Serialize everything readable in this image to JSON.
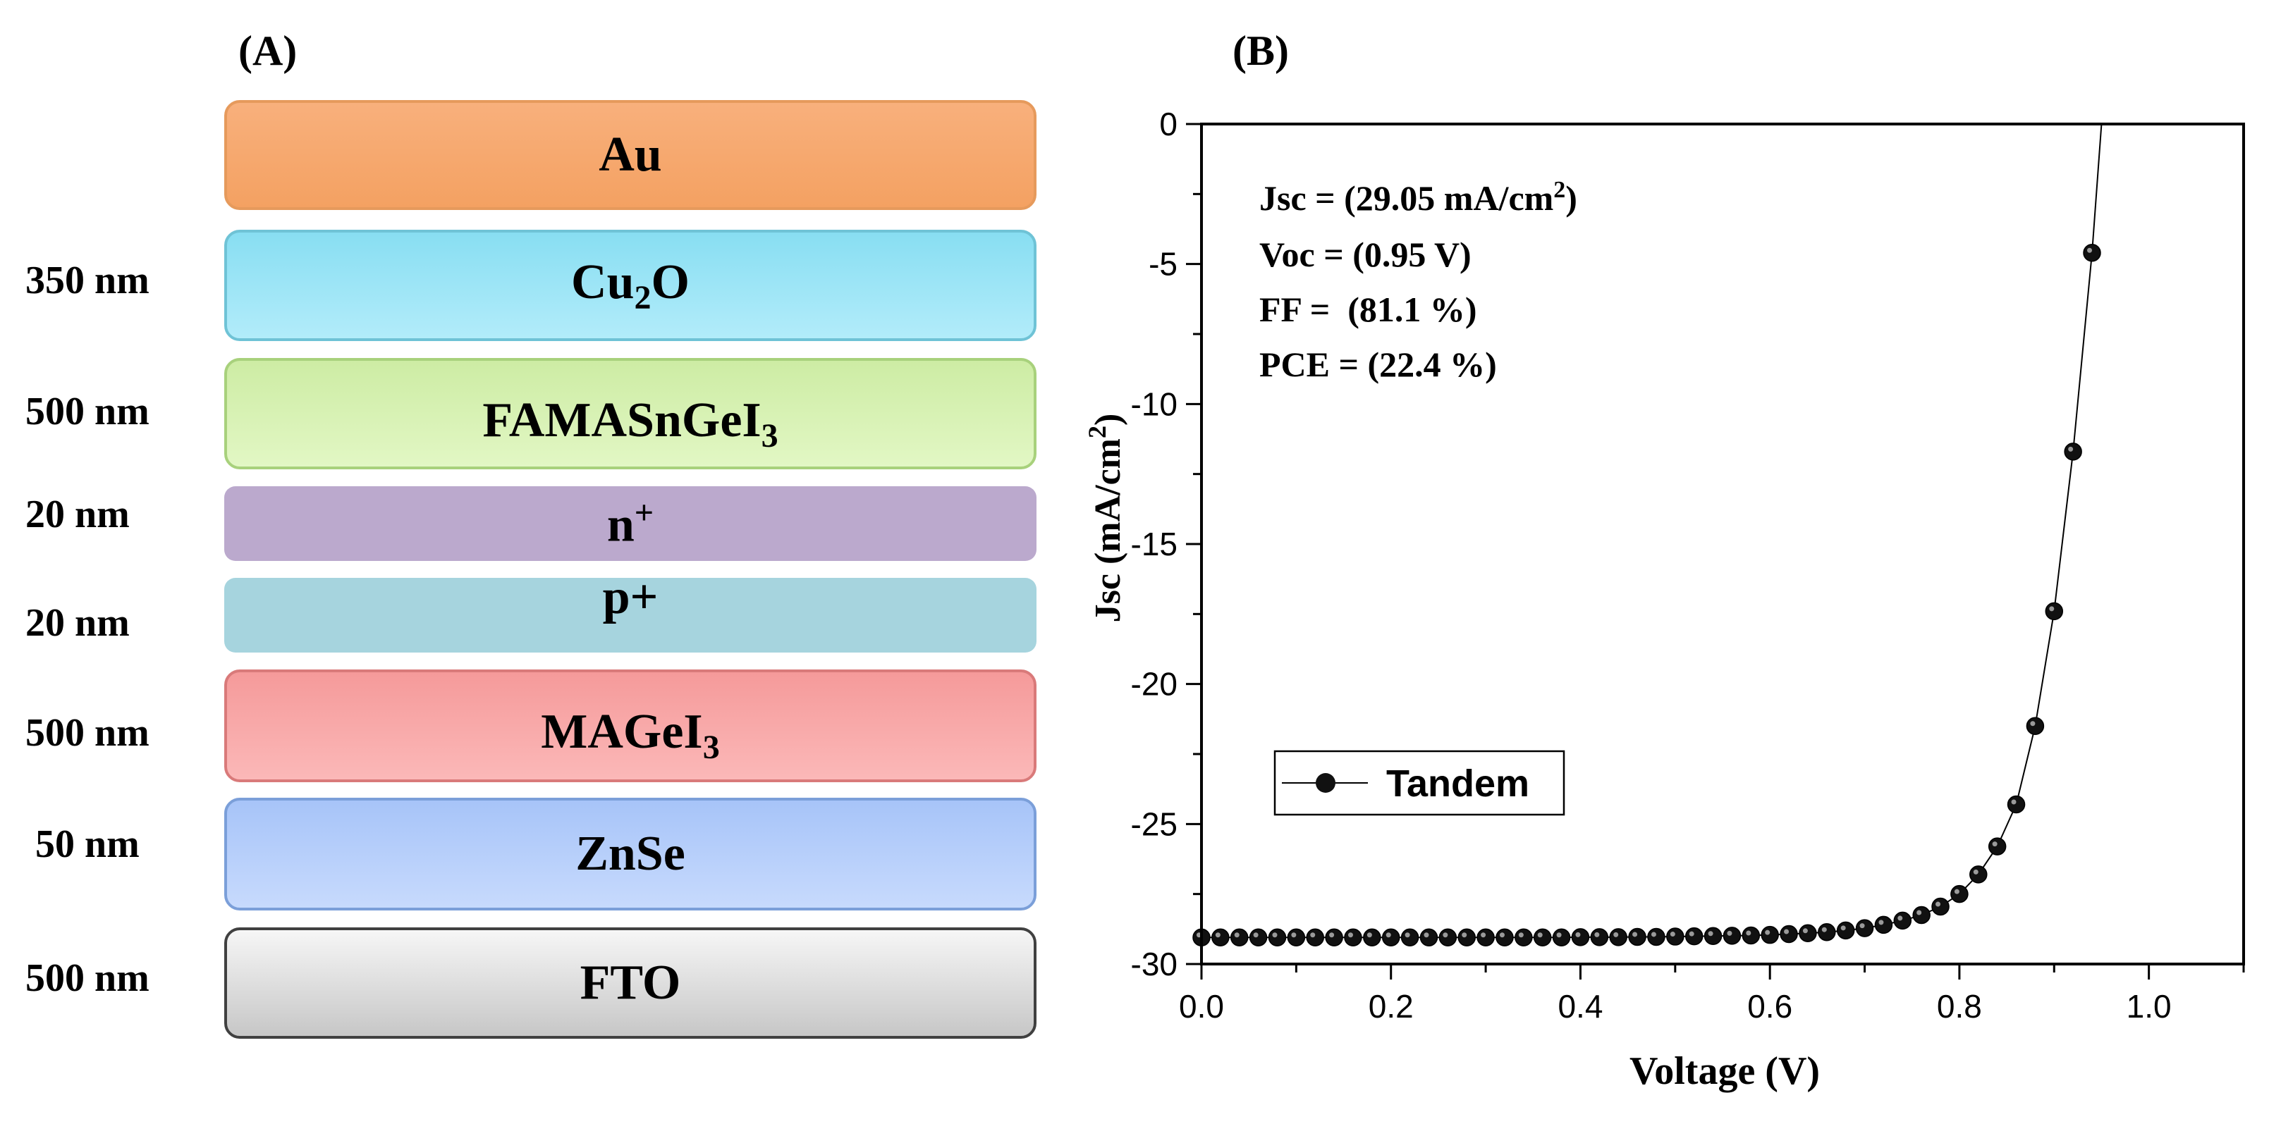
{
  "panel_a": {
    "label": "(A)",
    "layers": [
      {
        "name": "Au",
        "thickness": ""
      },
      {
        "name": "Cu2O",
        "thickness": "350 nm"
      },
      {
        "name": "FAMASnGeI3",
        "thickness": "500 nm"
      },
      {
        "name": "n+",
        "thickness": "20 nm"
      },
      {
        "name": "p+",
        "thickness": "20 nm"
      },
      {
        "name": "MAGeI3",
        "thickness": "500 nm"
      },
      {
        "name": "ZnSe",
        "thickness": "50 nm"
      },
      {
        "name": "FTO",
        "thickness": "500 nm"
      }
    ]
  },
  "panel_b": {
    "label": "(B)",
    "annotations": {
      "jsc": "Jsc = (29.05 mA/cm2)",
      "voc": "Voc = (0.95 V)",
      "ff": "FF =  (81.1 %)",
      "pce": "PCE = (22.4 %)"
    }
  },
  "chart_data": {
    "type": "line",
    "title": "",
    "xlabel": "Voltage (V)",
    "ylabel": "Jsc (mA/cm2)",
    "xlim": [
      0.0,
      1.1
    ],
    "ylim": [
      -30,
      0
    ],
    "xticks": [
      0.0,
      0.2,
      0.4,
      0.6,
      0.8,
      1.0
    ],
    "xtick_labels": [
      "0.0",
      "0.2",
      "0.4",
      "0.6",
      "0.8",
      "1.0"
    ],
    "yticks": [
      0,
      -5,
      -10,
      -15,
      -20,
      -25,
      -30
    ],
    "ytick_labels": [
      "0",
      "-5",
      "-10",
      "-15",
      "-20",
      "-25",
      "-30"
    ],
    "legend": {
      "position": "center-left",
      "entries": [
        "Tandem"
      ]
    },
    "series": [
      {
        "name": "Tandem",
        "x": [
          0.0,
          0.02,
          0.04,
          0.06,
          0.08,
          0.1,
          0.12,
          0.14,
          0.16,
          0.18,
          0.2,
          0.22,
          0.24,
          0.26,
          0.28,
          0.3,
          0.32,
          0.34,
          0.36,
          0.38,
          0.4,
          0.42,
          0.44,
          0.46,
          0.48,
          0.5,
          0.52,
          0.54,
          0.56,
          0.58,
          0.6,
          0.62,
          0.64,
          0.66,
          0.68,
          0.7,
          0.72,
          0.74,
          0.76,
          0.78,
          0.8,
          0.82,
          0.84,
          0.86,
          0.88,
          0.9,
          0.92,
          0.94
        ],
        "y": [
          -29.05,
          -29.05,
          -29.05,
          -29.05,
          -29.05,
          -29.05,
          -29.05,
          -29.05,
          -29.05,
          -29.05,
          -29.05,
          -29.05,
          -29.05,
          -29.05,
          -29.05,
          -29.05,
          -29.05,
          -29.05,
          -29.05,
          -29.05,
          -29.04,
          -29.04,
          -29.04,
          -29.03,
          -29.03,
          -29.02,
          -29.01,
          -29.0,
          -28.99,
          -28.98,
          -28.96,
          -28.93,
          -28.9,
          -28.86,
          -28.8,
          -28.72,
          -28.6,
          -28.45,
          -28.25,
          -27.95,
          -27.5,
          -26.8,
          -25.8,
          -24.3,
          -21.5,
          -17.4,
          -11.7,
          -4.6
        ]
      }
    ]
  }
}
